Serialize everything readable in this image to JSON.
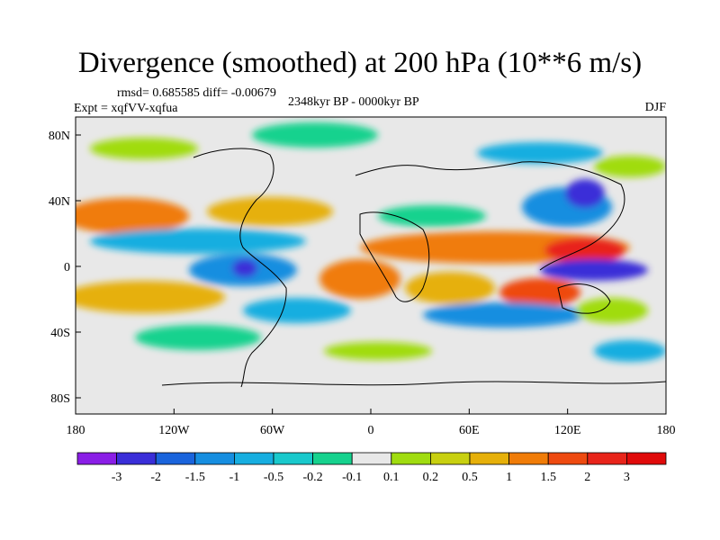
{
  "title": "Divergence (smoothed) at 200 hPa (10**6 m/s)",
  "stats": "rmsd= 0.685585 diff= -0.00679",
  "experiment": "Expt = xqfVV-xqfua",
  "period": "2348kyr BP - 0000kyr BP",
  "season": "DJF",
  "lat_ticks": [
    "80N",
    "40N",
    "0",
    "40S",
    "80S"
  ],
  "lon_ticks": [
    "180",
    "120W",
    "60W",
    "0",
    "60E",
    "120E",
    "180"
  ],
  "colorbar": {
    "labels": [
      "-3",
      "-2",
      "-1.5",
      "-1",
      "-0.5",
      "-0.2",
      "-0.1",
      "0.1",
      "0.2",
      "0.5",
      "1",
      "1.5",
      "2",
      "3"
    ],
    "colors": [
      "#8a1ee6",
      "#3a2ed8",
      "#1a64dc",
      "#168ee0",
      "#17aee0",
      "#19c9cc",
      "#16d28e",
      "#e8e8e8",
      "#a0dc10",
      "#c8d010",
      "#e6b00a",
      "#f07c08",
      "#ee4a10",
      "#e8241a",
      "#e00a0a"
    ]
  }
}
